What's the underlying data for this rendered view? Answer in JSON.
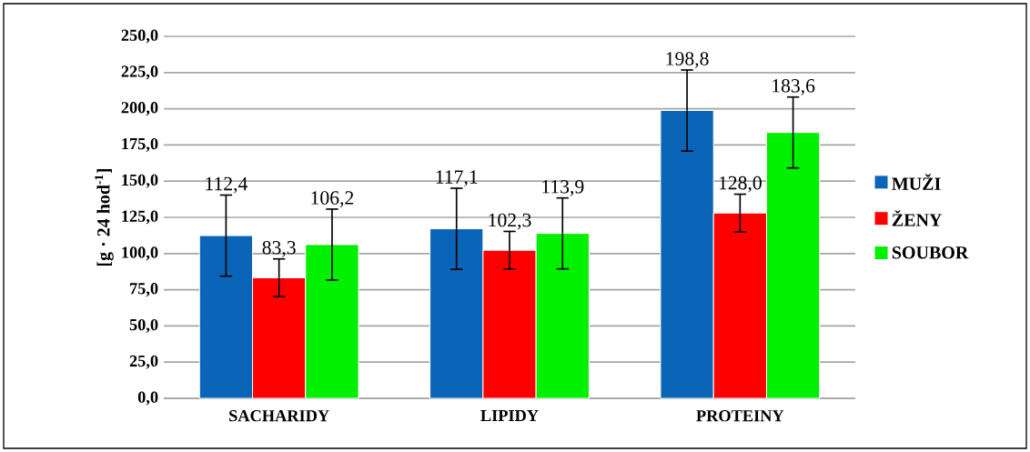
{
  "chart_data": {
    "type": "bar",
    "ylabel": "[g · 24 hod$^{-1}$]",
    "categories": [
      "SACHARIDY",
      "LIPIDY",
      "PROTEINY"
    ],
    "series": [
      {
        "name": "MUŽI",
        "color": "#0a64b8",
        "values": [
          112.4,
          117.1,
          198.8
        ],
        "value_labels": [
          "112,4",
          "117,1",
          "198,8"
        ],
        "errors": [
          28,
          28,
          28
        ]
      },
      {
        "name": "ŽENY",
        "color": "#ff0000",
        "values": [
          83.3,
          102.3,
          128.0
        ],
        "value_labels": [
          "83,3",
          "102,3",
          "128,0"
        ],
        "errors": [
          13,
          13,
          13
        ]
      },
      {
        "name": "SOUBOR",
        "color": "#00f000",
        "values": [
          106.2,
          113.9,
          183.6
        ],
        "value_labels": [
          "106,2",
          "113,9",
          "183,6"
        ],
        "errors": [
          24.5,
          24.5,
          24.5
        ]
      }
    ],
    "ylim": [
      0,
      250
    ],
    "yticks": [
      {
        "value": 0,
        "label": "0,0"
      },
      {
        "value": 25,
        "label": "25,0"
      },
      {
        "value": 50,
        "label": "50,0"
      },
      {
        "value": 75,
        "label": "75,0"
      },
      {
        "value": 100,
        "label": "100,0"
      },
      {
        "value": 125,
        "label": "125,0"
      },
      {
        "value": 150,
        "label": "150,0"
      },
      {
        "value": 175,
        "label": "175,0"
      },
      {
        "value": 200,
        "label": "200,0"
      },
      {
        "value": 225,
        "label": "225,0"
      },
      {
        "value": 250,
        "label": "250,0"
      }
    ],
    "grid": "y",
    "legend": "right"
  }
}
